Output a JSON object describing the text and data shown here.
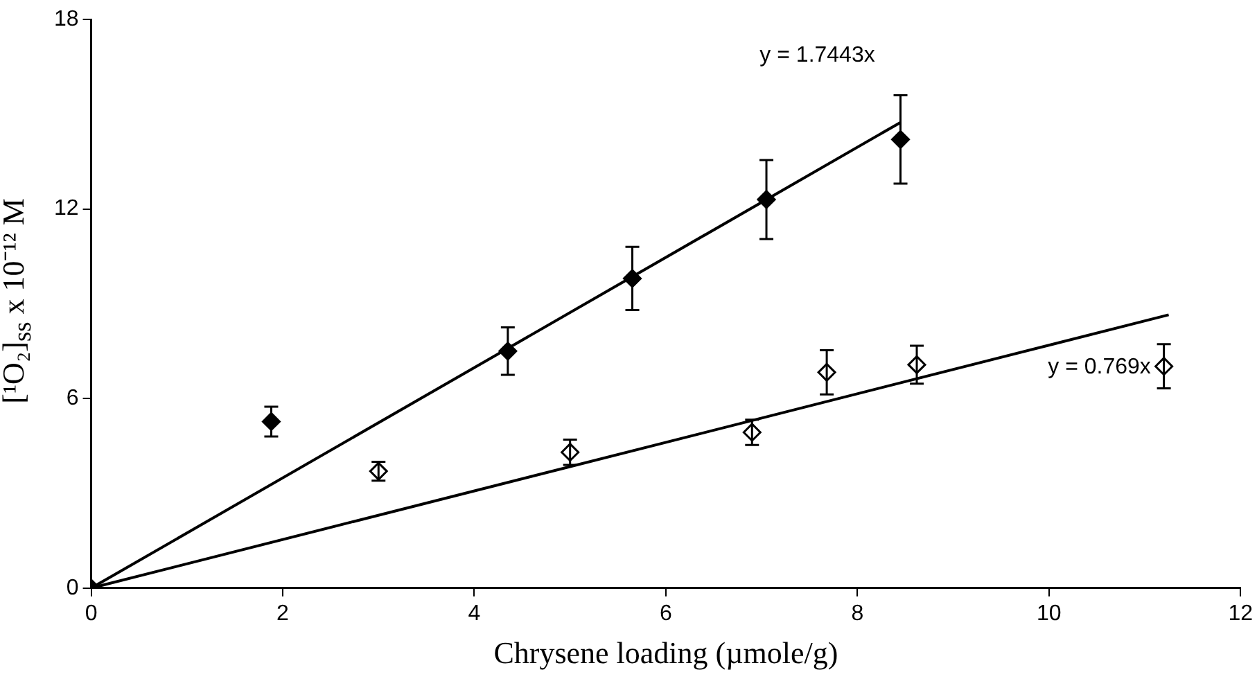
{
  "chart_data": {
    "type": "scatter",
    "xlabel": "Chrysene loading (µmole/g)",
    "ylabel": "[¹O₂]$_{ss}$ x 10⁻¹² M",
    "xlim": [
      0,
      12
    ],
    "xticks": [
      0,
      2,
      4,
      6,
      8,
      10,
      12
    ],
    "ylim": [
      0,
      18
    ],
    "yticks": [
      0,
      6,
      12,
      18
    ],
    "grid": false,
    "legend": false,
    "marker": "diamond",
    "series": [
      {
        "type": "line",
        "name": "y = 1.7443x",
        "color": "#000000",
        "x": [
          0,
          8.45
        ],
        "values": [
          0,
          14.74
        ],
        "marker": "none"
      },
      {
        "type": "line",
        "name": "y = 0.769x",
        "color": "#000000",
        "x": [
          0,
          11.25
        ],
        "values": [
          0,
          8.65
        ],
        "marker": "none"
      },
      {
        "color": "#000000",
        "x": [
          0,
          1.88,
          4.35,
          5.65,
          7.05,
          8.45
        ],
        "values": [
          0,
          5.27,
          7.5,
          9.8,
          12.3,
          14.2
        ],
        "errors": [
          null,
          0.47,
          0.75,
          1.0,
          1.25,
          1.4
        ]
      },
      {
        "color": "#ffffff",
        "x": [
          3.0,
          5.0,
          6.9,
          7.68,
          8.62,
          11.2
        ],
        "values": [
          3.7,
          4.3,
          4.93,
          6.83,
          7.07,
          7.02
        ],
        "errors": [
          0.3,
          0.4,
          0.4,
          0.7,
          0.6,
          0.7
        ]
      }
    ]
  }
}
